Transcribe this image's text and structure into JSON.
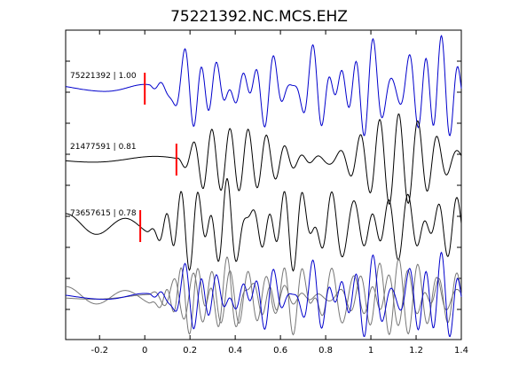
{
  "chart_data": {
    "type": "line",
    "title": "75221392.NC.MCS.EHZ",
    "xlabel": "",
    "ylabel": "",
    "xlim": [
      -0.35,
      1.4
    ],
    "xticks": [
      -0.2,
      0,
      0.2,
      0.4,
      0.6,
      0.8,
      1,
      1.2,
      1.4
    ],
    "xtick_labels": [
      "-0.2",
      "0",
      "0.2",
      "0.4",
      "0.6",
      "0.8",
      "1",
      "1.2",
      "1.4"
    ],
    "grid": false,
    "colors": {
      "primary_trace": "#0000cc",
      "other_trace": "#000000",
      "overlay_trace": "#777777",
      "pick_marker": "#ff0000"
    },
    "series": [
      {
        "label": "75221392 | 1.00",
        "color": "#0000cc",
        "pick_x": 0.0,
        "onset_x": 0.02,
        "pre_amplitude": 0.25,
        "post_amplitude": 1.0,
        "seed": 1
      },
      {
        "label": "21477591 | 0.81",
        "color": "#000000",
        "pick_x": 0.14,
        "onset_x": 0.14,
        "pre_amplitude": 0.25,
        "post_amplitude": 1.0,
        "seed": 2
      },
      {
        "label": "73657615 | 0.78",
        "color": "#000000",
        "pick_x": -0.02,
        "onset_x": 0.0,
        "pre_amplitude": 0.35,
        "post_amplitude": 1.0,
        "seed": 3
      }
    ],
    "overlay": {
      "primary_color": "#0000cc",
      "other_color": "#777777"
    }
  }
}
